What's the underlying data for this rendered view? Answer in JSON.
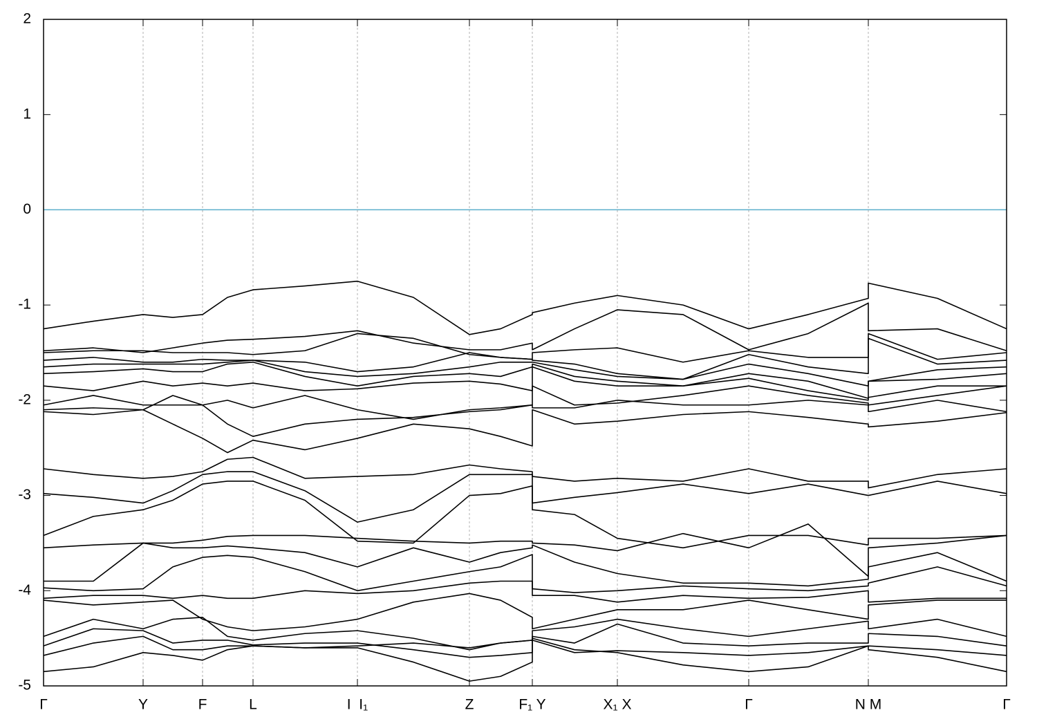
{
  "chart_data": {
    "type": "line",
    "x": [
      0,
      0.72,
      1.44,
      1.87,
      2.3,
      2.66,
      3.03,
      3.78,
      4.54,
      5.35,
      6.16,
      6.61,
      7.07,
      7.07,
      7.68,
      8.3,
      9.25,
      10.2,
      11.06,
      11.93,
      11.93,
      12.93,
      13.93
    ],
    "xlim": [
      0,
      13.93
    ],
    "xticks": [
      {
        "value": 0,
        "label": "Γ"
      },
      {
        "value": 1.44,
        "label": "Y"
      },
      {
        "value": 2.3,
        "label": "F"
      },
      {
        "value": 3.03,
        "label": "L"
      },
      {
        "value": 4.54,
        "label": "I  I₁"
      },
      {
        "value": 6.16,
        "label": "Z"
      },
      {
        "value": 7.07,
        "label": "F₁ Y"
      },
      {
        "value": 8.3,
        "label": "X₁ X"
      },
      {
        "value": 10.2,
        "label": "Γ"
      },
      {
        "value": 11.93,
        "label": "N M"
      },
      {
        "value": 13.93,
        "label": "Γ"
      }
    ],
    "ylim": [
      -5,
      2
    ],
    "yticks": [
      -5,
      -4,
      -3,
      -2,
      -1,
      0,
      1,
      2
    ],
    "grid": "x",
    "reference_line": {
      "value": 0,
      "color": "#5aaecb"
    },
    "series": [
      {
        "color": "#000000",
        "values": [
          -1.25,
          -1.17,
          -1.1,
          -1.13,
          -1.1,
          -0.92,
          -0.84,
          -0.8,
          -0.75,
          -0.92,
          -1.31,
          -1.25,
          -1.1,
          -1.08,
          -0.98,
          -0.9,
          -1.0,
          -1.25,
          -1.1,
          -0.93,
          -0.77,
          -0.93,
          -1.25
        ]
      },
      {
        "color": "#000000",
        "values": [
          -1.48,
          -1.45,
          -1.5,
          -1.45,
          -1.4,
          -1.37,
          -1.36,
          -1.33,
          -1.27,
          -1.4,
          -1.47,
          -1.47,
          -1.4,
          -1.47,
          -1.25,
          -1.05,
          -1.1,
          -1.47,
          -1.3,
          -0.98,
          -1.27,
          -1.25,
          -1.48
        ]
      },
      {
        "color": "#000000",
        "values": [
          -1.5,
          -1.48,
          -1.48,
          -1.5,
          -1.5,
          -1.5,
          -1.52,
          -1.48,
          -1.3,
          -1.35,
          -1.52,
          -1.55,
          -1.57,
          -1.5,
          -1.47,
          -1.45,
          -1.6,
          -1.48,
          -1.55,
          -1.55,
          -1.3,
          -1.57,
          -1.5
        ]
      },
      {
        "color": "#000000",
        "values": [
          -1.58,
          -1.55,
          -1.6,
          -1.6,
          -1.57,
          -1.58,
          -1.58,
          -1.6,
          -1.7,
          -1.65,
          -1.5,
          -1.55,
          -1.57,
          -1.58,
          -1.62,
          -1.72,
          -1.78,
          -1.52,
          -1.65,
          -1.72,
          -1.35,
          -1.62,
          -1.58
        ]
      },
      {
        "color": "#000000",
        "values": [
          -1.65,
          -1.62,
          -1.62,
          -1.62,
          -1.62,
          -1.6,
          -1.58,
          -1.7,
          -1.75,
          -1.72,
          -1.65,
          -1.6,
          -1.6,
          -1.6,
          -1.68,
          -1.75,
          -1.78,
          -1.62,
          -1.72,
          -1.85,
          -1.8,
          -1.68,
          -1.65
        ]
      },
      {
        "color": "#000000",
        "values": [
          -1.72,
          -1.7,
          -1.67,
          -1.7,
          -1.7,
          -1.62,
          -1.6,
          -1.75,
          -1.85,
          -1.75,
          -1.72,
          -1.75,
          -1.65,
          -1.62,
          -1.75,
          -1.8,
          -1.85,
          -1.72,
          -1.8,
          -1.98,
          -1.8,
          -1.78,
          -1.72
        ]
      },
      {
        "color": "#000000",
        "values": [
          -1.85,
          -1.9,
          -1.8,
          -1.85,
          -1.82,
          -1.85,
          -1.82,
          -1.9,
          -1.88,
          -1.82,
          -1.8,
          -1.83,
          -1.9,
          -1.65,
          -1.8,
          -1.85,
          -1.85,
          -1.77,
          -1.9,
          -2.0,
          -1.97,
          -1.85,
          -1.85
        ]
      },
      {
        "color": "#000000",
        "values": [
          -2.05,
          -1.95,
          -2.05,
          -2.05,
          -2.05,
          -2.0,
          -2.08,
          -1.95,
          -2.1,
          -2.2,
          -2.1,
          -2.08,
          -2.05,
          -1.85,
          -2.05,
          -2.03,
          -1.95,
          -1.85,
          -1.95,
          -2.03,
          -2.05,
          -1.95,
          -1.85
        ]
      },
      {
        "color": "#000000",
        "values": [
          -2.12,
          -2.15,
          -2.1,
          -1.95,
          -2.05,
          -2.25,
          -2.38,
          -2.25,
          -2.2,
          -2.18,
          -2.12,
          -2.1,
          -2.05,
          -2.08,
          -2.08,
          -2.0,
          -2.05,
          -2.05,
          -2.0,
          -2.05,
          -2.12,
          -2.0,
          -2.12
        ]
      },
      {
        "color": "#000000",
        "values": [
          -2.1,
          -2.08,
          -2.1,
          -2.25,
          -2.4,
          -2.55,
          -2.42,
          -2.52,
          -2.4,
          -2.25,
          -2.3,
          -2.38,
          -2.48,
          -2.1,
          -2.25,
          -2.22,
          -2.15,
          -2.12,
          -2.18,
          -2.25,
          -2.28,
          -2.22,
          -2.13
        ]
      },
      {
        "color": "#000000",
        "values": [
          -2.72,
          -2.78,
          -2.82,
          -2.8,
          -2.75,
          -2.62,
          -2.6,
          -2.82,
          -2.8,
          -2.78,
          -2.68,
          -2.72,
          -2.75,
          -2.8,
          -2.85,
          -2.82,
          -2.85,
          -2.72,
          -2.85,
          -2.85,
          -2.92,
          -2.78,
          -2.72
        ]
      },
      {
        "color": "#000000",
        "values": [
          -2.98,
          -3.02,
          -3.08,
          -2.95,
          -2.78,
          -2.75,
          -2.75,
          -2.95,
          -3.28,
          -3.15,
          -2.78,
          -2.78,
          -2.78,
          -3.08,
          -3.02,
          -2.97,
          -2.88,
          -2.98,
          -2.88,
          -3.0,
          -3.0,
          -2.85,
          -2.98
        ]
      },
      {
        "color": "#000000",
        "values": [
          -3.42,
          -3.22,
          -3.15,
          -3.05,
          -2.88,
          -2.85,
          -2.85,
          -3.05,
          -3.48,
          -3.5,
          -3.0,
          -2.98,
          -2.9,
          -3.15,
          -3.2,
          -3.45,
          -3.55,
          -3.42,
          -3.42,
          -3.52,
          -3.45,
          -3.45,
          -3.42
        ]
      },
      {
        "color": "#000000",
        "values": [
          -3.55,
          -3.52,
          -3.5,
          -3.5,
          -3.47,
          -3.43,
          -3.42,
          -3.42,
          -3.45,
          -3.48,
          -3.5,
          -3.48,
          -3.48,
          -3.5,
          -3.52,
          -3.58,
          -3.4,
          -3.55,
          -3.3,
          -3.85,
          -3.55,
          -3.5,
          -3.42
        ]
      },
      {
        "color": "#000000",
        "values": [
          -3.9,
          -3.9,
          -3.5,
          -3.55,
          -3.55,
          -3.53,
          -3.55,
          -3.6,
          -3.75,
          -3.55,
          -3.7,
          -3.6,
          -3.55,
          -3.52,
          -3.7,
          -3.82,
          -3.92,
          -3.92,
          -3.95,
          -3.88,
          -3.75,
          -3.6,
          -3.9
        ]
      },
      {
        "color": "#000000",
        "values": [
          -3.97,
          -4.0,
          -3.98,
          -3.75,
          -3.65,
          -3.63,
          -3.65,
          -3.8,
          -4.0,
          -3.9,
          -3.8,
          -3.75,
          -3.62,
          -3.98,
          -4.02,
          -4.0,
          -3.95,
          -3.98,
          -4.0,
          -3.95,
          -3.92,
          -3.75,
          -3.95
        ]
      },
      {
        "color": "#000000",
        "values": [
          -4.08,
          -4.05,
          -4.05,
          -4.08,
          -4.05,
          -4.08,
          -4.08,
          -4.0,
          -4.03,
          -4.0,
          -3.92,
          -3.9,
          -3.9,
          -4.05,
          -4.05,
          -4.12,
          -4.05,
          -4.08,
          -4.07,
          -4.0,
          -4.12,
          -4.08,
          -4.08
        ]
      },
      {
        "color": "#000000",
        "values": [
          -4.1,
          -4.15,
          -4.12,
          -4.1,
          -4.3,
          -4.38,
          -4.42,
          -4.38,
          -4.3,
          -4.12,
          -4.03,
          -4.1,
          -4.28,
          -4.4,
          -4.3,
          -4.2,
          -4.2,
          -4.1,
          -4.2,
          -4.3,
          -4.15,
          -4.1,
          -4.1
        ]
      },
      {
        "color": "#000000",
        "values": [
          -4.48,
          -4.3,
          -4.4,
          -4.3,
          -4.28,
          -4.48,
          -4.52,
          -4.45,
          -4.42,
          -4.5,
          -4.62,
          -4.55,
          -4.52,
          -4.42,
          -4.38,
          -4.3,
          -4.4,
          -4.48,
          -4.4,
          -4.32,
          -4.4,
          -4.3,
          -4.48
        ]
      },
      {
        "color": "#000000",
        "values": [
          -4.58,
          -4.4,
          -4.42,
          -4.55,
          -4.52,
          -4.52,
          -4.57,
          -4.55,
          -4.55,
          -4.62,
          -4.7,
          -4.68,
          -4.65,
          -4.48,
          -4.55,
          -4.35,
          -4.55,
          -4.58,
          -4.55,
          -4.55,
          -4.45,
          -4.48,
          -4.58
        ]
      },
      {
        "color": "#000000",
        "values": [
          -4.68,
          -4.55,
          -4.48,
          -4.62,
          -4.62,
          -4.58,
          -4.58,
          -4.6,
          -4.6,
          -4.75,
          -4.95,
          -4.9,
          -4.75,
          -4.52,
          -4.65,
          -4.63,
          -4.65,
          -4.68,
          -4.65,
          -4.58,
          -4.58,
          -4.62,
          -4.68
        ]
      },
      {
        "color": "#000000",
        "values": [
          -4.85,
          -4.8,
          -4.65,
          -4.68,
          -4.73,
          -4.62,
          -4.58,
          -4.6,
          -4.58,
          -4.55,
          -4.6,
          -4.55,
          -4.52,
          -4.5,
          -4.62,
          -4.65,
          -4.78,
          -4.85,
          -4.8,
          -4.58,
          -4.62,
          -4.7,
          -4.85
        ]
      }
    ]
  }
}
